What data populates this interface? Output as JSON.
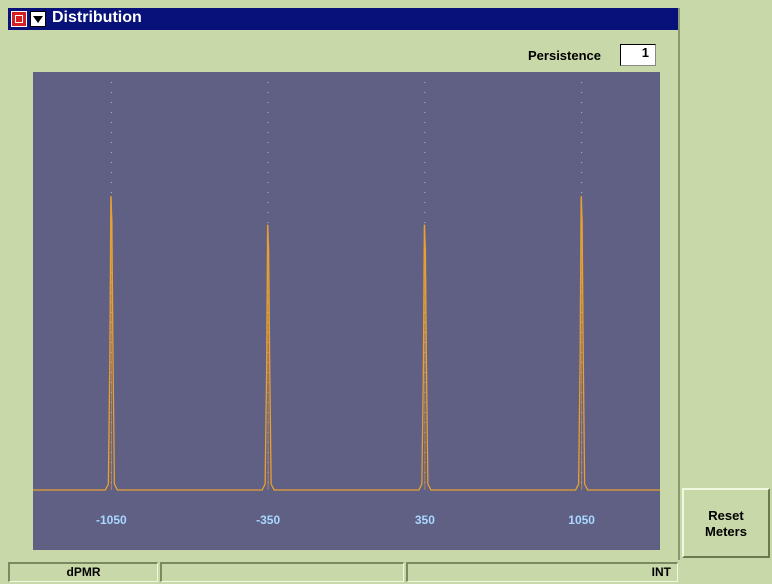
{
  "window": {
    "title": "Distribution"
  },
  "persistence": {
    "label": "Persistence",
    "value": "1"
  },
  "softkeys": {
    "reset_line1": "Reset",
    "reset_line2": "Meters"
  },
  "status": {
    "mode": "dPMR",
    "middle": "",
    "reference": "INT"
  },
  "colors": {
    "plot_background": "#605f84",
    "trace": "#e8a030",
    "tick_label": "#a8d8ff",
    "titlebar": "#08107a",
    "panel": "#c8d8a8"
  },
  "chart_data": {
    "type": "line",
    "title": "Distribution",
    "x_tick_labels": [
      "-1050",
      "-350",
      "350",
      "1050"
    ],
    "x_ticks": [
      -1050,
      -350,
      350,
      1050
    ],
    "xlim": [
      -1400,
      1400
    ],
    "peaks": [
      {
        "x": -1050,
        "relative_height": 0.72
      },
      {
        "x": -350,
        "relative_height": 0.65
      },
      {
        "x": 350,
        "relative_height": 0.65
      },
      {
        "x": 1050,
        "relative_height": 0.72
      }
    ],
    "grid": "dotted vertical lines at tick positions"
  }
}
